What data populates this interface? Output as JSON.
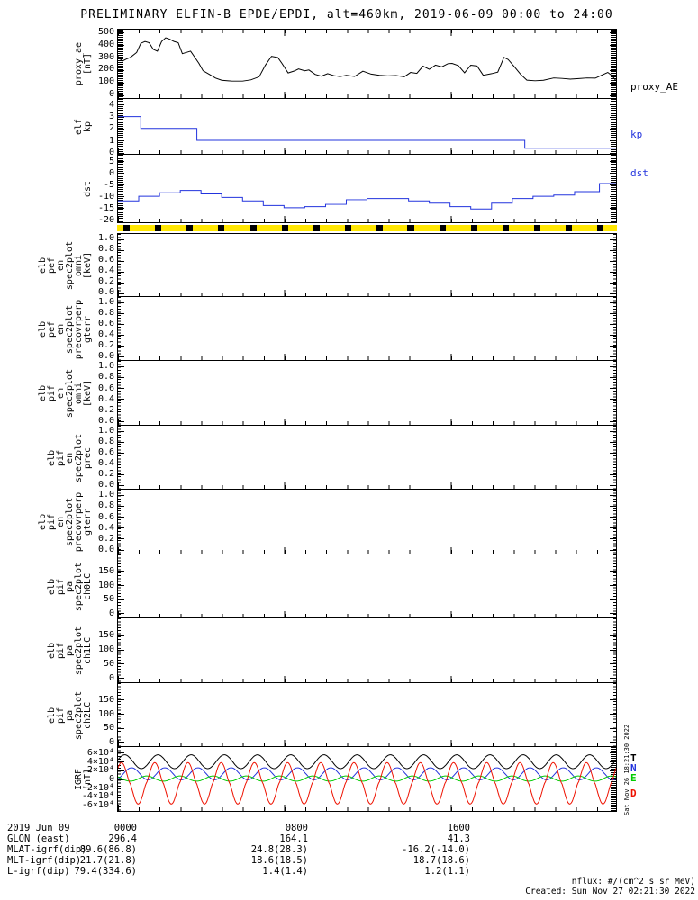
{
  "title": "PRELIMINARY ELFIN-B EPDE/EPDI, alt=460km, 2019-06-09 00:00 to 24:00",
  "footer": {
    "nflux": "nflux: #/(cm^2 s sr MeV)",
    "created": "Created: Sun Nov 27 02:21:30 2022"
  },
  "side_timestamp": "Sat Nov 26 18:21:30 2022",
  "annotations": {
    "rows": [
      {
        "label": "2019 Jun 09",
        "values": [
          "0000",
          "0800",
          "1600"
        ]
      },
      {
        "label": "GLON (east)",
        "values": [
          "296.4",
          "164.1",
          "41.3"
        ]
      },
      {
        "label": "MLAT-igrf(dip)",
        "values": [
          "89.6(86.8)",
          "24.8(28.3)",
          "-16.2(-14.0)"
        ]
      },
      {
        "label": "MLT-igrf(dip)",
        "values": [
          "21.7(21.8)",
          "18.6(18.5)",
          "18.7(18.6)"
        ]
      },
      {
        "label": "L-igrf(dip)",
        "values": [
          "79.4(334.6)",
          "1.4(1.4)",
          "1.2(1.1)"
        ]
      }
    ]
  },
  "availability_bar": {
    "color": "#ffe600",
    "mark_color": "#000000",
    "mark_width_f": 0.013,
    "marks_f": [
      0.013,
      0.076,
      0.139,
      0.202,
      0.266,
      0.329,
      0.392,
      0.455,
      0.518,
      0.581,
      0.645,
      0.708,
      0.771,
      0.834,
      0.897,
      0.96
    ]
  },
  "chart_data": [
    {
      "id": "proxy_ae",
      "type": "line",
      "color": "#000000",
      "left_label": [
        "proxy_ae",
        "[nT]"
      ],
      "right_label": "proxy_AE",
      "right_label_color": "#000000",
      "ymin": -34,
      "ymax": 527,
      "xrange": [
        0,
        24
      ],
      "yticks": [
        500,
        400,
        300,
        200,
        100,
        0
      ],
      "ytick_labels": [
        "500",
        "400",
        "300",
        "200",
        "100",
        "0"
      ],
      "dense_edges": true,
      "x_hours": [
        0,
        0.2,
        0.4,
        0.6,
        0.9,
        1.1,
        1.3,
        1.5,
        1.7,
        1.9,
        2.1,
        2.3,
        2.5,
        2.7,
        2.9,
        3.1,
        3.3,
        3.5,
        3.7,
        3.9,
        4.1,
        4.4,
        4.7,
        5,
        5.5,
        6,
        6.4,
        6.8,
        7.1,
        7.4,
        7.7,
        7.9,
        8.2,
        8.5,
        8.7,
        9,
        9.2,
        9.5,
        9.8,
        10.1,
        10.4,
        10.7,
        11,
        11.4,
        11.8,
        12.2,
        12.6,
        13,
        13.4,
        13.8,
        14.1,
        14.4,
        14.7,
        15,
        15.3,
        15.6,
        15.9,
        16.1,
        16.4,
        16.7,
        17,
        17.3,
        17.6,
        18,
        18.3,
        18.6,
        18.8,
        19.1,
        19.4,
        19.7,
        20.1,
        20.5,
        21,
        21.4,
        21.8,
        22.2,
        22.6,
        23,
        23.3,
        23.6,
        23.8,
        24
      ],
      "values": [
        310,
        268,
        285,
        300,
        340,
        415,
        430,
        420,
        365,
        350,
        430,
        460,
        448,
        430,
        420,
        330,
        340,
        350,
        300,
        250,
        190,
        160,
        130,
        112,
        105,
        105,
        115,
        140,
        235,
        308,
        298,
        250,
        172,
        188,
        205,
        190,
        196,
        160,
        145,
        166,
        150,
        142,
        152,
        143,
        186,
        162,
        152,
        148,
        151,
        141,
        176,
        168,
        228,
        202,
        236,
        222,
        248,
        250,
        232,
        173,
        236,
        229,
        153,
        166,
        179,
        300,
        282,
        223,
        161,
        113,
        108,
        112,
        131,
        127,
        121,
        126,
        131,
        129,
        153,
        176,
        150,
        108
      ]
    },
    {
      "id": "kp",
      "type": "step",
      "color": "#2233dd",
      "left_label": [
        "elf",
        "kp"
      ],
      "right_label": "kp",
      "right_label_color": "#2233dd",
      "ymin": -0.15,
      "ymax": 4.5,
      "xrange": [
        0,
        24
      ],
      "yticks": [
        4,
        3,
        2,
        1,
        0
      ],
      "ytick_labels": [
        "4",
        "3",
        "2",
        "1",
        "0"
      ],
      "dense_edges": true,
      "x_hours": [
        0,
        1.1,
        3.8,
        19.6,
        24
      ],
      "values": [
        3,
        2,
        1,
        0.33,
        0.33
      ]
    },
    {
      "id": "dst",
      "type": "step",
      "color": "#2233dd",
      "left_label": [
        "dst"
      ],
      "right_label": "dst",
      "right_label_color": "#2233dd",
      "ymin": -21.3,
      "ymax": 8,
      "xrange": [
        0,
        24
      ],
      "yticks": [
        5,
        0,
        -5,
        -10,
        -15,
        -20
      ],
      "ytick_labels": [
        "5",
        "0",
        "-5",
        "-10",
        "-15",
        "-20"
      ],
      "dense_edges": true,
      "x_hours": [
        0,
        1,
        2,
        3,
        4,
        5,
        6,
        7,
        8,
        9,
        10,
        11,
        12,
        13,
        14,
        15,
        16,
        17,
        18,
        19,
        20,
        21,
        22,
        23.2,
        24
      ],
      "values": [
        -12,
        -10,
        -8.5,
        -7.5,
        -9,
        -10.5,
        -12,
        -14,
        -15,
        -14.5,
        -13.5,
        -11.5,
        -11,
        -11,
        -12,
        -13,
        -14.5,
        -15.5,
        -13,
        -11,
        -10,
        -9.5,
        -8,
        -4.5,
        -4.5
      ]
    },
    {
      "id": "pef_en_omni",
      "type": "empty",
      "left_label": [
        "elb",
        "pef",
        "en",
        "spec2plot",
        "omni",
        "[keV]"
      ],
      "ymin": -0.08,
      "ymax": 1.1,
      "yticks": [
        1.0,
        0.8,
        0.6,
        0.4,
        0.2,
        0.0
      ],
      "ytick_labels": [
        "1.0",
        "0.8",
        "0.6",
        "0.4",
        "0.2",
        "0.0"
      ]
    },
    {
      "id": "pef_en_precovrperp",
      "type": "empty",
      "left_label": [
        "elb",
        "pef",
        "en",
        "spec2plot",
        "precovrperp",
        "gterr"
      ],
      "ymin": -0.08,
      "ymax": 1.1,
      "yticks": [
        1.0,
        0.8,
        0.6,
        0.4,
        0.2,
        0.0
      ],
      "ytick_labels": [
        "1.0",
        "0.8",
        "0.6",
        "0.4",
        "0.2",
        "0.0"
      ]
    },
    {
      "id": "pif_en_omni",
      "type": "empty",
      "left_label": [
        "elb",
        "pif",
        "en",
        "spec2plot",
        "omni",
        "[keV]"
      ],
      "ymin": -0.08,
      "ymax": 1.1,
      "yticks": [
        1.0,
        0.8,
        0.6,
        0.4,
        0.2,
        0.0
      ],
      "ytick_labels": [
        "1.0",
        "0.8",
        "0.6",
        "0.4",
        "0.2",
        "0.0"
      ]
    },
    {
      "id": "pif_en_prec",
      "type": "empty",
      "left_label": [
        "elb",
        "pif",
        "en",
        "spec2plot",
        "prec"
      ],
      "ymin": -0.08,
      "ymax": 1.1,
      "yticks": [
        1.0,
        0.8,
        0.6,
        0.4,
        0.2,
        0.0
      ],
      "ytick_labels": [
        "1.0",
        "0.8",
        "0.6",
        "0.4",
        "0.2",
        "0.0"
      ]
    },
    {
      "id": "pif_en_precovrperp",
      "type": "empty",
      "left_label": [
        "elb",
        "pif",
        "en",
        "spec2plot",
        "precovrperp",
        "gterr"
      ],
      "ymin": -0.08,
      "ymax": 1.1,
      "yticks": [
        1.0,
        0.8,
        0.6,
        0.4,
        0.2,
        0.0
      ],
      "ytick_labels": [
        "1.0",
        "0.8",
        "0.6",
        "0.4",
        "0.2",
        "0.0"
      ]
    },
    {
      "id": "pif_pa_ch0",
      "type": "empty",
      "left_label": [
        "elb",
        "pif",
        "pa",
        "spec2plot",
        "ch0LC"
      ],
      "ymin": -16,
      "ymax": 210,
      "yticks": [
        150,
        100,
        50,
        0
      ],
      "ytick_labels": [
        "150",
        "100",
        "50",
        "0"
      ]
    },
    {
      "id": "pif_pa_ch1",
      "type": "empty",
      "left_label": [
        "elb",
        "pif",
        "pa",
        "spec2plot",
        "ch1LC"
      ],
      "ymin": -16,
      "ymax": 210,
      "yticks": [
        150,
        100,
        50,
        0
      ],
      "ytick_labels": [
        "150",
        "100",
        "50",
        "0"
      ]
    },
    {
      "id": "pif_pa_ch2",
      "type": "empty",
      "left_label": [
        "elb",
        "pif",
        "pa",
        "spec2plot",
        "ch2LC"
      ],
      "ymin": -16,
      "ymax": 210,
      "yticks": [
        150,
        100,
        50,
        0
      ],
      "ytick_labels": [
        "150",
        "100",
        "50",
        "0"
      ]
    },
    {
      "id": "igrf",
      "type": "osc_multi",
      "left_label": [
        "IGRF",
        "[nT]"
      ],
      "ymin": -74000,
      "ymax": 74000,
      "period_hours": 1.6,
      "yticks": [
        60000,
        40000,
        20000,
        0,
        -20000,
        -40000,
        -60000
      ],
      "ytick_labels": [
        "6×10⁴",
        "4×10⁴",
        "2×10⁴",
        "0",
        "-2×10⁴",
        "-4×10⁴",
        "-6×10⁴"
      ],
      "dense_edge_right": true,
      "series": [
        {
          "name": "T",
          "color": "#000000",
          "base": 40000,
          "pos_amp": 16000,
          "neg_amp": 16000,
          "phase": 0.3,
          "power": 1
        },
        {
          "name": "N",
          "color": "#2233dd",
          "base": 12000,
          "pos_amp": 14000,
          "neg_amp": 14000,
          "phase": -1.0,
          "power": 1
        },
        {
          "name": "E",
          "color": "#00cc00",
          "base": 500,
          "pos_amp": 6500,
          "neg_amp": 5500,
          "phase": 2.4,
          "power": 1
        },
        {
          "name": "D",
          "color": "#ee1100",
          "base": -9000,
          "pos_amp": 47000,
          "neg_amp": 49000,
          "phase": 0.9,
          "power": 1.3
        }
      ],
      "legend": [
        {
          "label": "T",
          "color": "#000000"
        },
        {
          "label": "N",
          "color": "#2233dd"
        },
        {
          "label": "E",
          "color": "#00cc00"
        },
        {
          "label": "D",
          "color": "#ee1100"
        }
      ]
    }
  ]
}
